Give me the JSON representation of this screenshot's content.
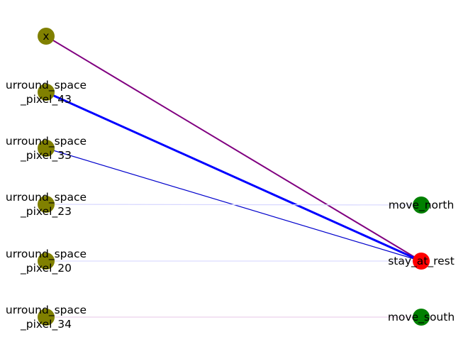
{
  "colors": {
    "input_node": "#808000",
    "output_node_active": "#ff0000",
    "output_node": "#008000"
  },
  "input_nodes": [
    {
      "id": "x",
      "label_lines": [
        "x"
      ]
    },
    {
      "id": "p43",
      "label_lines": [
        "urround_space",
        "_pixel_43"
      ]
    },
    {
      "id": "p33",
      "label_lines": [
        "urround_space",
        "_pixel_33"
      ]
    },
    {
      "id": "p23",
      "label_lines": [
        "urround_space",
        "_pixel_23"
      ]
    },
    {
      "id": "p20",
      "label_lines": [
        "urround_space",
        "_pixel_20"
      ]
    },
    {
      "id": "p34",
      "label_lines": [
        "urround_space",
        "_pixel_34"
      ]
    }
  ],
  "output_nodes": [
    {
      "id": "north",
      "label_lines": [
        "move_north"
      ],
      "active": false
    },
    {
      "id": "rest",
      "label_lines": [
        "stay_at_rest"
      ],
      "active": true
    },
    {
      "id": "south",
      "label_lines": [
        "move_south"
      ],
      "active": false
    }
  ],
  "edges": [
    {
      "from": "x",
      "to": "rest",
      "color": "#800080",
      "weight": 2.0
    },
    {
      "from": "p43",
      "to": "rest",
      "color": "#0000ff",
      "weight": 3.0
    },
    {
      "from": "p33",
      "to": "rest",
      "color": "#0000cc",
      "weight": 1.2
    },
    {
      "from": "p23",
      "to": "north",
      "color": "#d8d8ff",
      "weight": 1.2
    },
    {
      "from": "p20",
      "to": "rest",
      "color": "#dcdcff",
      "weight": 1.2
    },
    {
      "from": "p34",
      "to": "south",
      "color": "#ecd0ec",
      "weight": 1.2
    }
  ]
}
